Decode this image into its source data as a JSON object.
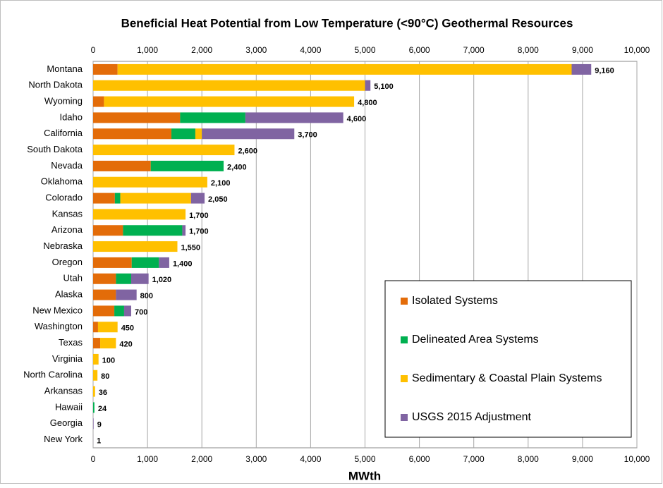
{
  "chart_data": {
    "type": "stacked_barh",
    "title": "Beneficial Heat Potential from Low Temperature (<90°C) Geothermal Resources",
    "xlabel": "MWth",
    "categories": [
      "Montana",
      "North Dakota",
      "Wyoming",
      "Idaho",
      "California",
      "South Dakota",
      "Nevada",
      "Oklahoma",
      "Colorado",
      "Kansas",
      "Arizona",
      "Nebraska",
      "Oregon",
      "Utah",
      "Alaska",
      "New Mexico",
      "Washington",
      "Texas",
      "Virginia",
      "North Carolina",
      "Arkansas",
      "Hawaii",
      "Georgia",
      "New York"
    ],
    "series": [
      {
        "name": "Isolated Systems",
        "color": "#e36c09",
        "values": [
          450,
          0,
          200,
          1600,
          1440,
          0,
          1060,
          0,
          400,
          0,
          550,
          0,
          710,
          420,
          420,
          390,
          90,
          130,
          0,
          0,
          0,
          0,
          0,
          0
        ]
      },
      {
        "name": "Delineated Area Systems",
        "color": "#00b050",
        "values": [
          0,
          0,
          0,
          1200,
          440,
          0,
          1340,
          0,
          100,
          0,
          1090,
          0,
          500,
          280,
          0,
          180,
          0,
          0,
          0,
          0,
          0,
          24,
          0,
          0
        ]
      },
      {
        "name": "Sedimentary & Coastal Plain Systems",
        "color": "#ffc000",
        "values": [
          8350,
          5000,
          4600,
          0,
          120,
          2600,
          0,
          2100,
          1300,
          1700,
          0,
          1550,
          0,
          0,
          0,
          0,
          360,
          290,
          100,
          80,
          36,
          0,
          0,
          0
        ]
      },
      {
        "name": "USGS 2015 Adjustment",
        "color": "#8064a2",
        "values": [
          360,
          100,
          0,
          1800,
          1700,
          0,
          0,
          0,
          250,
          0,
          60,
          0,
          190,
          320,
          380,
          130,
          0,
          0,
          0,
          0,
          0,
          0,
          9,
          1
        ]
      }
    ],
    "totals": [
      9160,
      5100,
      4800,
      4600,
      3700,
      2600,
      2400,
      2100,
      2050,
      1700,
      1700,
      1550,
      1400,
      1020,
      800,
      700,
      450,
      420,
      100,
      80,
      36,
      24,
      9,
      1
    ],
    "total_labels": [
      "9,160",
      "5,100",
      "4,800",
      "4,600",
      "3,700",
      "2,600",
      "2,400",
      "2,100",
      "2,050",
      "1,700",
      "1,700",
      "1,550",
      "1,400",
      "1,020",
      "800",
      "700",
      "450",
      "420",
      "100",
      "80",
      "36",
      "24",
      "9",
      "1"
    ],
    "xlim": [
      0,
      10000
    ],
    "xticks": [
      0,
      {
        "value": 1000,
        "label": "1,000"
      },
      {
        "value": 2000,
        "label": "2,000"
      },
      {
        "value": 3000,
        "label": "3,000"
      },
      {
        "value": 4000,
        "label": "4,000"
      },
      {
        "value": 5000,
        "label": "5,000"
      },
      {
        "value": 6000,
        "label": "6,000"
      },
      {
        "value": 7000,
        "label": "7,000"
      },
      {
        "value": 8000,
        "label": "8,000"
      },
      {
        "value": 9000,
        "label": "9,000"
      },
      {
        "value": 10000,
        "label": "10,000"
      }
    ],
    "grid": true,
    "legend": "lower right"
  }
}
